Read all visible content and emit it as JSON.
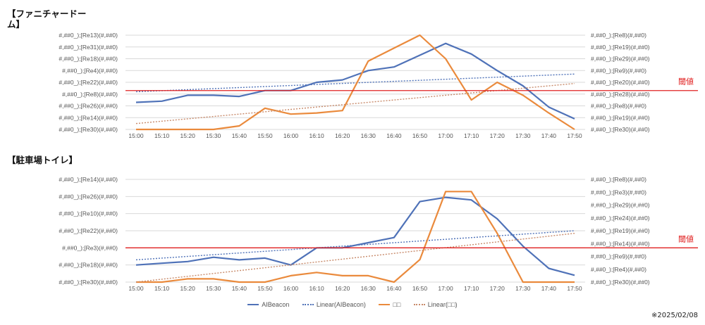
{
  "chart_data": [
    {
      "type": "line",
      "title": "【ファニチャードーム】",
      "categories": [
        "15:00",
        "15:10",
        "15:20",
        "15:30",
        "15:40",
        "15:50",
        "16:00",
        "16:10",
        "16:20",
        "16:30",
        "16:40",
        "16:50",
        "17:00",
        "17:10",
        "17:20",
        "17:30",
        "17:40",
        "17:50"
      ],
      "left_tick_labels": [
        "#,##0_);[Re13)(#,##0)",
        "#,##0_);[Re31)(#,##0)",
        "#,##0_);[Re18)(#,##0)",
        "#,##0_);[Re4)(#,##0)",
        "#,##0_);[Re22)(#,##0)",
        "#,##0_);[Re8)(#,##0)",
        "#,##0_);[Re26)(#,##0)",
        "#,##0_);[Re14)(#,##0)",
        "#,##0_);[Re30)(#,##0)"
      ],
      "right_tick_labels": [
        "#,##0_);[Re8)(#,##0)",
        "#,##0_);[Re19)(#,##0)",
        "#,##0_);[Re29)(#,##0)",
        "#,##0_);[Re9)(#,##0)",
        "#,##0_);[Re20)(#,##0)",
        "#,##0_);[Re28)(#,##0)",
        "#,##0_);[Re8)(#,##0)",
        "#,##0_);[Re19)(#,##0)",
        "#,##0_);[Re30)(#,##0)"
      ],
      "left_ylim": [
        0,
        8
      ],
      "right_ylim": [
        0,
        8
      ],
      "threshold": {
        "label": "閾値",
        "value": 3.3,
        "color": "#e02020"
      },
      "series": [
        {
          "name": "AIBeacon",
          "axis": "left",
          "color": "#4f72b8",
          "style": "solid",
          "values": [
            2.3,
            2.4,
            2.9,
            2.9,
            2.8,
            3.3,
            3.3,
            4.0,
            4.2,
            5.0,
            5.3,
            6.3,
            7.3,
            6.4,
            5.0,
            3.7,
            1.9,
            0.9
          ]
        },
        {
          "name": "Linear(AIBeacon)",
          "axis": "left",
          "color": "#4f72b8",
          "style": "dotted",
          "trend": [
            3.2,
            4.7
          ]
        },
        {
          "name": "",
          "axis": "right",
          "color": "#ea8a3c",
          "style": "solid",
          "values": [
            0.0,
            0.0,
            0.0,
            0.0,
            0.3,
            1.8,
            1.3,
            1.4,
            1.6,
            5.8,
            6.9,
            8.0,
            6.0,
            2.5,
            4.0,
            2.9,
            1.4,
            0.0
          ]
        },
        {
          "name": "Linear()",
          "axis": "right",
          "color": "#c88a6a",
          "style": "dotted",
          "trend": [
            0.5,
            3.9
          ]
        }
      ]
    },
    {
      "type": "line",
      "title": "【駐車場トイレ】",
      "categories": [
        "15:00",
        "15:10",
        "15:20",
        "15:30",
        "15:40",
        "15:50",
        "16:00",
        "16:10",
        "16:20",
        "16:30",
        "16:40",
        "16:50",
        "17:00",
        "17:10",
        "17:20",
        "17:30",
        "17:40",
        "17:50"
      ],
      "left_tick_labels": [
        "#,##0_);[Re14)(#,##0)",
        "#,##0_);[Re26)(#,##0)",
        "#,##0_);[Re10)(#,##0)",
        "#,##0_);[Re22)(#,##0)",
        "#,##0_);[Re3)(#,##0)",
        "#,##0_);[Re18)(#,##0)",
        "#,##0_);[Re30)(#,##0)"
      ],
      "right_tick_labels": [
        "#,##0_);[Re8)(#,##0)",
        "#,##0_);[Re3)(#,##0)",
        "#,##0_);[Re29)(#,##0)",
        "#,##0_);[Re24)(#,##0)",
        "#,##0_);[Re19)(#,##0)",
        "#,##0_);[Re14)(#,##0)",
        "#,##0_);[Re9)(#,##0)",
        "#,##0_);[Re4)(#,##0)",
        "#,##0_);[Re30)(#,##0)"
      ],
      "left_ylim": [
        0,
        6
      ],
      "right_ylim": [
        0,
        8
      ],
      "threshold": {
        "label": "閾値",
        "value": 2.0,
        "color": "#e02020"
      },
      "series": [
        {
          "name": "AIBeacon",
          "axis": "left",
          "color": "#4f72b8",
          "style": "solid",
          "values": [
            1.0,
            1.1,
            1.2,
            1.45,
            1.3,
            1.4,
            1.0,
            2.0,
            2.0,
            2.3,
            2.6,
            4.7,
            4.95,
            4.8,
            3.7,
            2.1,
            0.8,
            0.4
          ]
        },
        {
          "name": "Linear(AIBeacon)",
          "axis": "left",
          "color": "#4f72b8",
          "style": "dotted",
          "trend": [
            1.3,
            3.0
          ]
        },
        {
          "name": "",
          "axis": "right",
          "color": "#ea8a3c",
          "style": "solid",
          "values": [
            0.0,
            0.0,
            0.25,
            0.25,
            0.0,
            0.0,
            0.5,
            0.75,
            0.5,
            0.5,
            0.0,
            1.75,
            7.05,
            7.05,
            3.8,
            0.0,
            0.0,
            0.0
          ]
        },
        {
          "name": "Linear()",
          "axis": "right",
          "color": "#c88a6a",
          "style": "dotted",
          "trend": [
            0.0,
            3.8
          ]
        }
      ]
    }
  ],
  "legend": [
    {
      "label": "AIBeacon",
      "color": "#4f72b8",
      "style": "solid"
    },
    {
      "label": "Linear(AIBeacon)",
      "color": "#4f72b8",
      "style": "dotted"
    },
    {
      "label": "□□",
      "color": "#ea8a3c",
      "style": "solid"
    },
    {
      "label": "Linear(□□)",
      "color": "#c88a6a",
      "style": "dotted"
    }
  ],
  "footnote": "※2025/02/08",
  "colors": {
    "grid": "#d9d9d9",
    "threshold": "#e02020"
  }
}
